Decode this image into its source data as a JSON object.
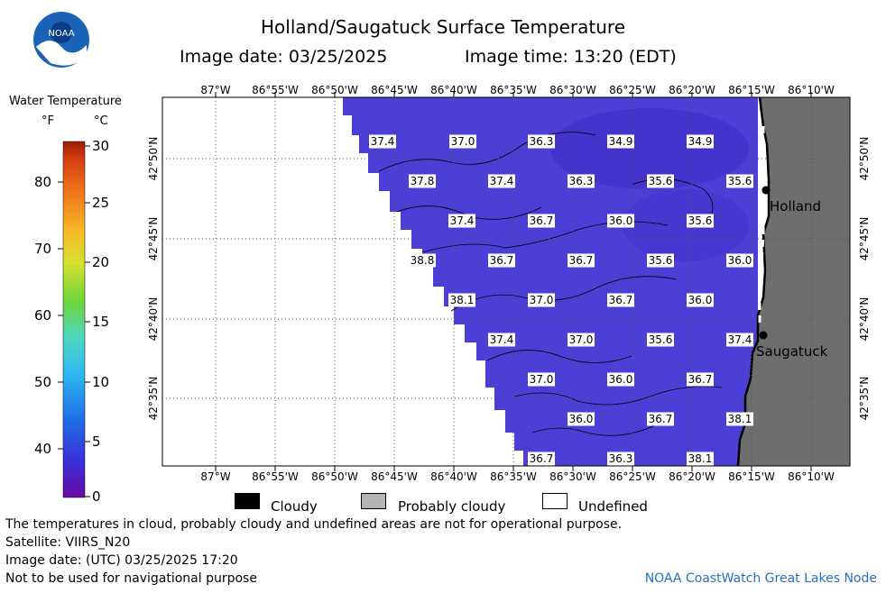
{
  "header": {
    "title": "Holland/Saugatuck Surface Temperature",
    "image_date": "Image date: 03/25/2025",
    "image_time": "Image time: 13:20 (EDT)"
  },
  "logo": {
    "text": "NOAA"
  },
  "colorbar": {
    "title": "Water Temperature",
    "unit_f": "°F",
    "unit_c": "°C",
    "f_ticks": [
      "80",
      "70",
      "60",
      "50",
      "40"
    ],
    "c_ticks": [
      "30",
      "25",
      "20",
      "15",
      "10",
      "5",
      "0"
    ]
  },
  "map": {
    "lon_labels": [
      "87°W",
      "86°55'W",
      "86°50'W",
      "86°45'W",
      "86°40'W",
      "86°35'W",
      "86°30'W",
      "86°25'W",
      "86°20'W",
      "86°15'W",
      "86°10'W"
    ],
    "lat_labels": [
      "42°50'N",
      "42°45'N",
      "42°40'N",
      "42°35'N"
    ],
    "places": [
      {
        "name": "Holland"
      },
      {
        "name": "Saugatuck"
      }
    ],
    "temperatures": [
      [
        "37.4",
        "37.0",
        "36.3",
        "34.9",
        "34.9"
      ],
      [
        "37.8",
        "37.4",
        "36.3",
        "35.6",
        "35.6"
      ],
      [
        "37.4",
        "36.7",
        "36.0",
        "35.6"
      ],
      [
        "38.8",
        "36.7",
        "36.7",
        "35.6",
        "36.0"
      ],
      [
        "38.1",
        "37.0",
        "36.7",
        "36.0"
      ],
      [
        "37.4",
        "37.0",
        "35.6",
        "37.4"
      ],
      [
        "37.0",
        "36.0",
        "36.7"
      ],
      [
        "36.0",
        "36.7",
        "38.1"
      ],
      [
        "36.7",
        "36.3",
        "38.1"
      ]
    ],
    "colors": {
      "water": "#4b3fd6",
      "land": "#6e6e6e",
      "grid": "#555555"
    }
  },
  "legend": {
    "cloudy": "Cloudy",
    "probably_cloudy": "Probably cloudy",
    "undefined": "Undefined"
  },
  "footer": {
    "note": "The temperatures in cloud, probably cloudy and undefined areas are not for operational purpose.",
    "satellite": "Satellite: VIIRS_N20",
    "utc_date": "Image date: (UTC) 03/25/2025  17:20",
    "nav_warning": "Not to be used for navigational purpose",
    "credit": "NOAA CoastWatch Great Lakes Node"
  }
}
